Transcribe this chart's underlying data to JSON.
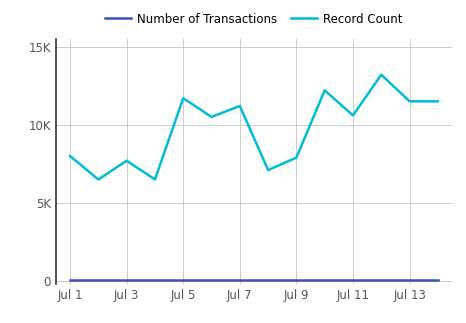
{
  "x_values": [
    1,
    2,
    3,
    4,
    5,
    6,
    7,
    8,
    9,
    10,
    11,
    12,
    13,
    14
  ],
  "record_count": [
    8000,
    6500,
    7700,
    6500,
    11700,
    10500,
    11200,
    7100,
    7900,
    12200,
    10600,
    13200,
    11500,
    11500
  ],
  "num_transactions": [
    100,
    100,
    100,
    100,
    100,
    100,
    100,
    100,
    100,
    100,
    100,
    100,
    100,
    100
  ],
  "record_count_color": "#00bcd4",
  "num_transactions_color": "#3f51b5",
  "legend_labels": [
    "Number of Transactions",
    "Record Count"
  ],
  "yticks": [
    0,
    5000,
    10000,
    15000
  ],
  "ytick_labels": [
    "0",
    "5K",
    "10K",
    "15K"
  ],
  "xtick_positions": [
    1,
    3,
    5,
    7,
    9,
    11,
    13
  ],
  "xtick_labels": [
    "Jul 1",
    "Jul 3",
    "Jul 5",
    "Jul 7",
    "Jul 9",
    "Jul 11",
    "Jul 13"
  ],
  "ylim": [
    -200,
    15500
  ],
  "xlim": [
    0.5,
    14.5
  ],
  "background_color": "#ffffff",
  "grid_color": "#cccccc",
  "line_width": 1.8,
  "spine_color": "#333333"
}
